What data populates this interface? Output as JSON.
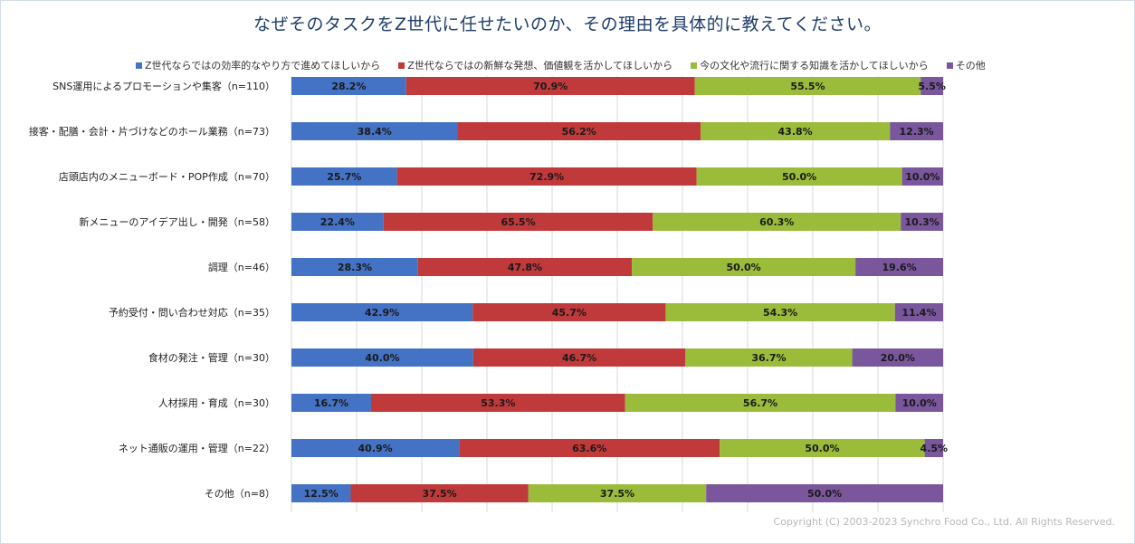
{
  "title": "なぜそのタスクをZ世代に任せたいのか、その理由を具体的に教えてください。",
  "copyright": "Copyright (C) 2003-2023 Synchro Food Co., Ltd. All Rights Reserved.",
  "chart_data": {
    "type": "bar",
    "orientation": "horizontal",
    "stacked": true,
    "grid": true,
    "legend_position": "top",
    "categories": [
      "SNS運用によるプロモーションや集客（n=110）",
      "接客・配膳・会計・片づけなどのホール業務（n=73）",
      "店頭店内のメニューボード・POP作成（n=70）",
      "新メニューのアイデア出し・開発（n=58）",
      "調理（n=46）",
      "予約受付・問い合わせ対応（n=35）",
      "食材の発注・管理（n=30）",
      "人材採用・育成（n=30）",
      "ネット通販の運用・管理（n=22）",
      "その他（n=8）"
    ],
    "series": [
      {
        "name": "Z世代ならではの効率的なやり方で進めてほしいから",
        "color": "#4472c4",
        "values": [
          28.2,
          38.4,
          25.7,
          22.4,
          28.3,
          42.9,
          40.0,
          16.7,
          40.9,
          12.5
        ],
        "labels": [
          "28.2%",
          "38.4%",
          "25.7%",
          "22.4%",
          "28.3%",
          "42.9%",
          "40.0%",
          "16.7%",
          "40.9%",
          "12.5%"
        ]
      },
      {
        "name": "Z世代ならではの新鮮な発想、価値観を活かしてほしいから",
        "color": "#c0393b",
        "values": [
          70.9,
          56.2,
          72.9,
          65.5,
          47.8,
          45.7,
          46.7,
          53.3,
          63.6,
          37.5
        ],
        "labels": [
          "70.9%",
          "56.2%",
          "72.9%",
          "65.5%",
          "47.8%",
          "45.7%",
          "46.7%",
          "53.3%",
          "63.6%",
          "37.5%"
        ]
      },
      {
        "name": "今の文化や流行に関する知識を活かしてほしいから",
        "color": "#9bbb3b",
        "values": [
          55.5,
          43.8,
          50.0,
          60.3,
          50.0,
          54.3,
          36.7,
          56.7,
          50.0,
          37.5
        ],
        "labels": [
          "55.5%",
          "43.8%",
          "50.0%",
          "60.3%",
          "50.0%",
          "54.3%",
          "36.7%",
          "56.7%",
          "50.0%",
          "37.5%"
        ]
      },
      {
        "name": "その他",
        "color": "#7a569d",
        "values": [
          5.5,
          12.3,
          10.0,
          10.3,
          19.6,
          11.4,
          20.0,
          10.0,
          4.5,
          50.0
        ],
        "labels": [
          "5.5%",
          "12.3%",
          "10.0%",
          "10.3%",
          "19.6%",
          "11.4%",
          "20.0%",
          "10.0%",
          "4.5%",
          "50.0%"
        ]
      }
    ]
  }
}
